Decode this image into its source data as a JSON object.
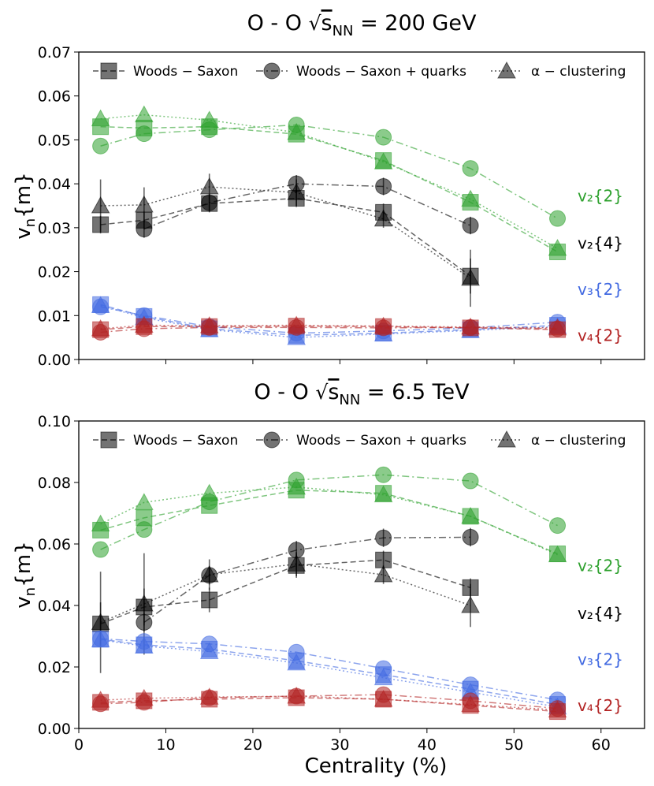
{
  "chart_data": [
    {
      "type": "line",
      "title": "O - O √s_NN = 200 GeV",
      "title_parts": {
        "system": "O - O",
        "sqrt": "√",
        "var": "s",
        "sub": "NN",
        "energy": "= 200 GeV"
      },
      "ylabel": "v_n{m}",
      "ylabel_parts": {
        "main": "v",
        "sub": "n",
        "rest": "{m}"
      },
      "xlabel": "",
      "xlim": [
        0,
        65
      ],
      "ylim": [
        0,
        0.07
      ],
      "yticks": [
        "0.00",
        "0.01",
        "0.02",
        "0.03",
        "0.04",
        "0.05",
        "0.06",
        "0.07"
      ],
      "ytick_values": [
        0,
        0.01,
        0.02,
        0.03,
        0.04,
        0.05,
        0.06,
        0.07
      ],
      "xtick_values": [
        0,
        10,
        20,
        30,
        40,
        50,
        60
      ],
      "xticks": [
        "",
        "",
        "",
        "",
        "",
        "",
        ""
      ],
      "legend": [
        {
          "label": "Woods − Saxon",
          "marker": "square",
          "dash": "dashed"
        },
        {
          "label": "Woods − Saxon + quarks",
          "marker": "circle",
          "dash": "dashdot"
        },
        {
          "label": "α − clustering",
          "marker": "triangle",
          "dash": "dotted"
        }
      ],
      "series_labels": [
        {
          "text": "v₂{2}",
          "color": "#2ca02c",
          "y": 0.0372
        },
        {
          "text": "v₂{4}",
          "color": "#000000",
          "y": 0.0265
        },
        {
          "text": "v₃{2}",
          "color": "#4169e1",
          "y": 0.016
        },
        {
          "text": "v₄{2}",
          "color": "#b22222",
          "y": 0.0055
        }
      ],
      "series": [
        {
          "name": "v2{2} Woods-Saxon",
          "harmonic": "v2{2}",
          "model": "Woods-Saxon",
          "color": "#2ca02c",
          "marker": "square",
          "dash": "dashed",
          "x": [
            2.5,
            7.5,
            15,
            25,
            35,
            45,
            55
          ],
          "y": [
            0.053,
            0.0527,
            0.053,
            0.0513,
            0.0453,
            0.0358,
            0.0245
          ]
        },
        {
          "name": "v2{2} Woods-Saxon + quarks",
          "harmonic": "v2{2}",
          "model": "Woods-Saxon + quarks",
          "color": "#2ca02c",
          "marker": "circle",
          "dash": "dashdot",
          "x": [
            2.5,
            7.5,
            15,
            25,
            35,
            45,
            55
          ],
          "y": [
            0.0486,
            0.0514,
            0.0523,
            0.0534,
            0.0506,
            0.0435,
            0.0321
          ]
        },
        {
          "name": "v2{2} alpha-clustering",
          "harmonic": "v2{2}",
          "model": "α-clustering",
          "color": "#2ca02c",
          "marker": "triangle",
          "dash": "dotted",
          "x": [
            2.5,
            7.5,
            15,
            25,
            35,
            45,
            55
          ],
          "y": [
            0.0548,
            0.0557,
            0.0545,
            0.0517,
            0.045,
            0.0365,
            0.0253
          ]
        },
        {
          "name": "v2{4} Woods-Saxon",
          "harmonic": "v2{4}",
          "model": "Woods-Saxon",
          "color": "#000000",
          "marker": "square",
          "dash": "dashed",
          "x": [
            2.5,
            7.5,
            15,
            25,
            35,
            45
          ],
          "y": [
            0.0307,
            0.0317,
            0.0355,
            0.0367,
            0.0335,
            0.019
          ],
          "err": [
            0.002,
            0.002,
            0.002,
            0.002,
            0.002,
            0.004
          ]
        },
        {
          "name": "v2{4} Woods-Saxon + quarks",
          "harmonic": "v2{4}",
          "model": "Woods-Saxon + quarks",
          "color": "#000000",
          "marker": "circle",
          "dash": "dashdot",
          "x": [
            7.5,
            15,
            25,
            35,
            45
          ],
          "y": [
            0.0297,
            0.0357,
            0.04,
            0.0394,
            0.0305
          ],
          "err": [
            0.002,
            0.002,
            0.002,
            0.002,
            0.002
          ]
        },
        {
          "name": "v2{4} alpha-clustering",
          "harmonic": "v2{4}",
          "model": "α-clustering",
          "color": "#000000",
          "marker": "triangle",
          "dash": "dotted",
          "x": [
            2.5,
            7.5,
            15,
            25,
            35,
            45
          ],
          "y": [
            0.035,
            0.0352,
            0.0393,
            0.038,
            0.032,
            0.0185
          ],
          "err": [
            0.006,
            0.004,
            0.003,
            0.003,
            0.002,
            0.0065
          ]
        },
        {
          "name": "v3{2} Woods-Saxon",
          "harmonic": "v3{2}",
          "model": "Woods-Saxon",
          "color": "#4169e1",
          "marker": "square",
          "dash": "dashed",
          "x": [
            2.5,
            7.5,
            15,
            25,
            35,
            45,
            55
          ],
          "y": [
            0.0125,
            0.0098,
            0.007,
            0.0055,
            0.006,
            0.0068,
            0.0078
          ]
        },
        {
          "name": "v3{2} Woods-Saxon + quarks",
          "harmonic": "v3{2}",
          "model": "Woods-Saxon + quarks",
          "color": "#4169e1",
          "marker": "circle",
          "dash": "dashdot",
          "x": [
            2.5,
            7.5,
            15,
            25,
            35,
            45,
            55
          ],
          "y": [
            0.012,
            0.01,
            0.0075,
            0.006,
            0.0065,
            0.0072,
            0.0085
          ]
        },
        {
          "name": "v3{2} alpha-clustering",
          "harmonic": "v3{2}",
          "model": "α-clustering",
          "color": "#4169e1",
          "marker": "triangle",
          "dash": "dotted",
          "x": [
            2.5,
            7.5,
            15,
            25,
            35,
            45,
            55
          ],
          "y": [
            0.0123,
            0.0095,
            0.0068,
            0.005,
            0.0058,
            0.0066,
            0.0075
          ]
        },
        {
          "name": "v4{2} Woods-Saxon",
          "harmonic": "v4{2}",
          "model": "Woods-Saxon",
          "color": "#b22222",
          "marker": "square",
          "dash": "dashed",
          "x": [
            2.5,
            7.5,
            15,
            25,
            35,
            45,
            55
          ],
          "y": [
            0.0068,
            0.0075,
            0.0075,
            0.0076,
            0.0075,
            0.0072,
            0.0068
          ]
        },
        {
          "name": "v4{2} Woods-Saxon + quarks",
          "harmonic": "v4{2}",
          "model": "Woods-Saxon + quarks",
          "color": "#b22222",
          "marker": "circle",
          "dash": "dashdot",
          "x": [
            2.5,
            7.5,
            15,
            25,
            35,
            45,
            55
          ],
          "y": [
            0.0062,
            0.007,
            0.0073,
            0.0073,
            0.0072,
            0.0073,
            0.007
          ]
        },
        {
          "name": "v4{2} alpha-clustering",
          "harmonic": "v4{2}",
          "model": "α-clustering",
          "color": "#b22222",
          "marker": "triangle",
          "dash": "dotted",
          "x": [
            2.5,
            7.5,
            15,
            25,
            35,
            45,
            55
          ],
          "y": [
            0.007,
            0.0078,
            0.0077,
            0.0078,
            0.0076,
            0.0074,
            0.0072
          ]
        }
      ]
    },
    {
      "type": "line",
      "title": "O - O √s_NN = 6.5 TeV",
      "title_parts": {
        "system": "O - O",
        "sqrt": "√",
        "var": "s",
        "sub": "NN",
        "energy": "= 6.5 TeV"
      },
      "ylabel": "v_n{m}",
      "ylabel_parts": {
        "main": "v",
        "sub": "n",
        "rest": "{m}"
      },
      "xlabel": "Centrality (%)",
      "xlim": [
        0,
        65
      ],
      "ylim": [
        0,
        0.1
      ],
      "yticks": [
        "0.00",
        "0.02",
        "0.04",
        "0.06",
        "0.08",
        "0.10"
      ],
      "ytick_values": [
        0,
        0.02,
        0.04,
        0.06,
        0.08,
        0.1
      ],
      "xtick_values": [
        0,
        10,
        20,
        30,
        40,
        50,
        60
      ],
      "xticks": [
        "0",
        "10",
        "20",
        "30",
        "40",
        "50",
        "60"
      ],
      "legend": [
        {
          "label": "Woods − Saxon",
          "marker": "square",
          "dash": "dashed"
        },
        {
          "label": "Woods − Saxon + quarks",
          "marker": "circle",
          "dash": "dashdot"
        },
        {
          "label": "α − clustering",
          "marker": "triangle",
          "dash": "dotted"
        }
      ],
      "series_labels": [
        {
          "text": "v₂{2}",
          "color": "#2ca02c",
          "y": 0.053
        },
        {
          "text": "v₂{4}",
          "color": "#000000",
          "y": 0.0375
        },
        {
          "text": "v₃{2}",
          "color": "#4169e1",
          "y": 0.0225
        },
        {
          "text": "v₄{2}",
          "color": "#b22222",
          "y": 0.0075
        }
      ],
      "series": [
        {
          "name": "v2{2} Woods-Saxon",
          "harmonic": "v2{2}",
          "model": "Woods-Saxon",
          "color": "#2ca02c",
          "marker": "square",
          "dash": "dashed",
          "x": [
            2.5,
            7.5,
            15,
            25,
            35,
            45,
            55
          ],
          "y": [
            0.0645,
            0.0685,
            0.0725,
            0.0775,
            0.0765,
            0.069,
            0.0568
          ]
        },
        {
          "name": "v2{2} Woods-Saxon + quarks",
          "harmonic": "v2{2}",
          "model": "Woods-Saxon + quarks",
          "color": "#2ca02c",
          "marker": "circle",
          "dash": "dashdot",
          "x": [
            2.5,
            7.5,
            15,
            25,
            35,
            45,
            55
          ],
          "y": [
            0.0582,
            0.0647,
            0.0737,
            0.0808,
            0.0825,
            0.0805,
            0.066
          ]
        },
        {
          "name": "v2{2} alpha-clustering",
          "harmonic": "v2{2}",
          "model": "α-clustering",
          "color": "#2ca02c",
          "marker": "triangle",
          "dash": "dotted",
          "x": [
            2.5,
            7.5,
            15,
            25,
            35,
            45,
            55
          ],
          "y": [
            0.0665,
            0.0735,
            0.0765,
            0.0785,
            0.076,
            0.069,
            0.0565
          ]
        },
        {
          "name": "v2{4} Woods-Saxon",
          "harmonic": "v2{4}",
          "model": "Woods-Saxon",
          "color": "#000000",
          "marker": "square",
          "dash": "dashed",
          "x": [
            2.5,
            7.5,
            15,
            25,
            35,
            45
          ],
          "y": [
            0.034,
            0.0395,
            0.0418,
            0.053,
            0.0548,
            0.0458
          ],
          "err": [
            0.007,
            0.006,
            0.004,
            0.004,
            0.003,
            0.003
          ]
        },
        {
          "name": "v2{4} Woods-Saxon + quarks",
          "harmonic": "v2{4}",
          "model": "Woods-Saxon + quarks",
          "color": "#000000",
          "marker": "circle",
          "dash": "dashdot",
          "x": [
            7.5,
            15,
            25,
            35,
            45
          ],
          "y": [
            0.0345,
            0.0498,
            0.058,
            0.062,
            0.0622
          ],
          "err": [
            0.003,
            0.003,
            0.003,
            0.003,
            0.003
          ]
        },
        {
          "name": "v2{4} alpha-clustering",
          "harmonic": "v2{4}",
          "model": "α-clustering",
          "color": "#000000",
          "marker": "triangle",
          "dash": "dotted",
          "x": [
            2.5,
            7.5,
            15,
            25,
            35,
            45
          ],
          "y": [
            0.0345,
            0.0405,
            0.05,
            0.0535,
            0.05,
            0.04
          ],
          "err": [
            0.0165,
            0.0165,
            0.005,
            0.004,
            0.003,
            0.007
          ]
        },
        {
          "name": "v3{2} Woods-Saxon",
          "harmonic": "v3{2}",
          "model": "Woods-Saxon",
          "color": "#4169e1",
          "marker": "square",
          "dash": "dashed",
          "x": [
            2.5,
            7.5,
            15,
            25,
            35,
            45,
            55
          ],
          "y": [
            0.029,
            0.0272,
            0.0258,
            0.022,
            0.0175,
            0.0128,
            0.0078
          ]
        },
        {
          "name": "v3{2} Woods-Saxon + quarks",
          "harmonic": "v3{2}",
          "model": "Woods-Saxon + quarks",
          "color": "#4169e1",
          "marker": "circle",
          "dash": "dashdot",
          "x": [
            2.5,
            7.5,
            15,
            25,
            35,
            45,
            55
          ],
          "y": [
            0.0292,
            0.0283,
            0.0275,
            0.0248,
            0.0195,
            0.0142,
            0.0093
          ]
        },
        {
          "name": "v3{2} alpha-clustering",
          "harmonic": "v3{2}",
          "model": "α-clustering",
          "color": "#4169e1",
          "marker": "triangle",
          "dash": "dotted",
          "x": [
            2.5,
            7.5,
            15,
            25,
            35,
            45,
            55
          ],
          "y": [
            0.0288,
            0.0268,
            0.025,
            0.0213,
            0.0165,
            0.0118,
            0.007
          ]
        },
        {
          "name": "v4{2} Woods-Saxon",
          "harmonic": "v4{2}",
          "model": "Woods-Saxon",
          "color": "#b22222",
          "marker": "square",
          "dash": "dashed",
          "x": [
            2.5,
            7.5,
            15,
            25,
            35,
            45,
            55
          ],
          "y": [
            0.0085,
            0.009,
            0.0095,
            0.01,
            0.0095,
            0.0075,
            0.0055
          ]
        },
        {
          "name": "v4{2} Woods-Saxon + quarks",
          "harmonic": "v4{2}",
          "model": "Woods-Saxon + quarks",
          "color": "#b22222",
          "marker": "circle",
          "dash": "dashdot",
          "x": [
            2.5,
            7.5,
            15,
            25,
            35,
            45,
            55
          ],
          "y": [
            0.008,
            0.0085,
            0.01,
            0.0105,
            0.011,
            0.009,
            0.0065
          ]
        },
        {
          "name": "v4{2} alpha-clustering",
          "harmonic": "v4{2}",
          "model": "α-clustering",
          "color": "#b22222",
          "marker": "triangle",
          "dash": "dotted",
          "x": [
            2.5,
            7.5,
            15,
            25,
            35,
            45,
            55
          ],
          "y": [
            0.0092,
            0.0098,
            0.0102,
            0.0105,
            0.0095,
            0.0078,
            0.006
          ]
        }
      ]
    }
  ]
}
